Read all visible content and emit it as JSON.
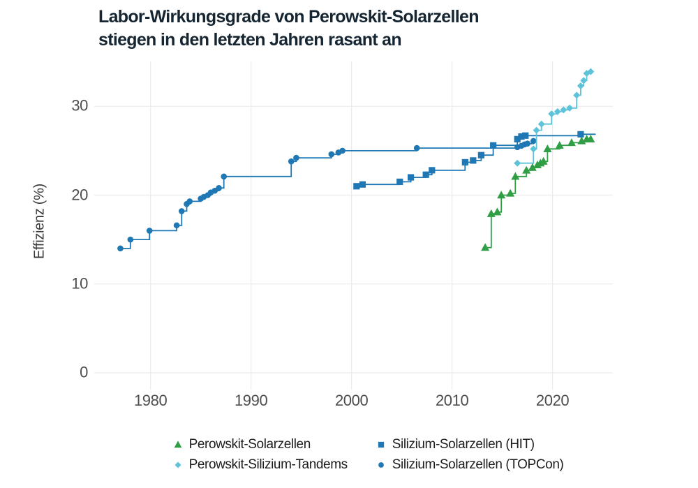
{
  "title": {
    "line1": "Labor-Wirkungsgrade von Perowskit-Solarzellen",
    "line2": "stiegen in den letzten Jahren rasant an"
  },
  "colors": {
    "green": "#2f9e44",
    "cyan": "#5ec3d8",
    "blue": "#1f77b4",
    "grid": "#ebebeb",
    "tick_text": "#4d4d4d",
    "title_text": "#152531"
  },
  "y_axis": {
    "label": "Effizienz (%)",
    "ticks": [
      {
        "label": "30",
        "value": 30
      },
      {
        "label": "20",
        "value": 20
      },
      {
        "label": "10",
        "value": 10
      },
      {
        "label": "0",
        "value": 0
      }
    ]
  },
  "x_axis": {
    "ticks": [
      {
        "label": "1980",
        "value": 1980
      },
      {
        "label": "1990",
        "value": 1990
      },
      {
        "label": "2000",
        "value": 2000
      },
      {
        "label": "2010",
        "value": 2010
      },
      {
        "label": "2020",
        "value": 2020
      }
    ]
  },
  "chart_data": {
    "type": "line",
    "step": "after",
    "title": "Labor-Wirkungsgrade von Perowskit-Solarzellen stiegen in den letzten Jahren rasant an",
    "xlabel": "",
    "ylabel": "Effizienz (%)",
    "xlim": [
      1974.4,
      2026
    ],
    "ylim": [
      0,
      35
    ],
    "grid": true,
    "legend_position": "bottom",
    "series": [
      {
        "id": "perowskit",
        "name": "Perowskit-Solarzellen",
        "marker": "triangle",
        "color": "#2f9e44",
        "extend_to": null,
        "points": [
          [
            2013.3,
            14.1
          ],
          [
            2013.9,
            17.9
          ],
          [
            2014.5,
            18.1
          ],
          [
            2014.9,
            20.0
          ],
          [
            2015.8,
            20.2
          ],
          [
            2016.3,
            22.1
          ],
          [
            2017.4,
            22.8
          ],
          [
            2018.0,
            23.1
          ],
          [
            2018.5,
            23.4
          ],
          [
            2018.8,
            23.6
          ],
          [
            2019.1,
            23.8
          ],
          [
            2019.5,
            25.2
          ],
          [
            2020.7,
            25.6
          ],
          [
            2021.9,
            25.9
          ],
          [
            2022.9,
            26.1
          ],
          [
            2023.4,
            26.3
          ],
          [
            2023.8,
            26.3
          ]
        ]
      },
      {
        "id": "tandems",
        "name": "Perowskit-Silizium-Tandems",
        "marker": "diamond",
        "color": "#5ec3d8",
        "extend_to": null,
        "points": [
          [
            2016.5,
            23.6
          ],
          [
            2018.1,
            25.2
          ],
          [
            2018.4,
            27.3
          ],
          [
            2018.9,
            28.0
          ],
          [
            2019.9,
            29.15
          ],
          [
            2020.5,
            29.4
          ],
          [
            2021.1,
            29.6
          ],
          [
            2021.7,
            29.8
          ],
          [
            2022.4,
            31.25
          ],
          [
            2022.8,
            32.3
          ],
          [
            2023.1,
            32.9
          ],
          [
            2023.4,
            33.7
          ],
          [
            2023.8,
            33.9
          ]
        ]
      },
      {
        "id": "hit",
        "name": "Silizium-Solarzellen (HIT)",
        "marker": "square",
        "color": "#1f77b4",
        "extend_to": 2024.3,
        "points": [
          [
            2000.5,
            21.0
          ],
          [
            2001.1,
            21.2
          ],
          [
            2004.8,
            21.5
          ],
          [
            2005.9,
            22.0
          ],
          [
            2007.4,
            22.3
          ],
          [
            2008.0,
            22.8
          ],
          [
            2011.3,
            23.7
          ],
          [
            2012.1,
            23.9
          ],
          [
            2012.9,
            24.5
          ],
          [
            2014.1,
            25.6
          ],
          [
            2016.5,
            26.3
          ],
          [
            2016.9,
            26.6
          ],
          [
            2017.3,
            26.7
          ],
          [
            2022.8,
            26.85
          ]
        ]
      },
      {
        "id": "topcon",
        "name": "Silizium-Solarzellen (TOPCon)",
        "marker": "circle",
        "color": "#1f77b4",
        "extend_to": null,
        "points": [
          [
            1977.0,
            14.0
          ],
          [
            1978.0,
            15.0
          ],
          [
            1979.9,
            16.0
          ],
          [
            1982.6,
            16.6
          ],
          [
            1983.1,
            18.2
          ],
          [
            1983.6,
            19.0
          ],
          [
            1983.9,
            19.3
          ],
          [
            1985.0,
            19.6
          ],
          [
            1985.3,
            19.8
          ],
          [
            1985.7,
            20.0
          ],
          [
            1986.0,
            20.3
          ],
          [
            1986.4,
            20.5
          ],
          [
            1986.8,
            20.8
          ],
          [
            1987.3,
            22.1
          ],
          [
            1994.0,
            23.8
          ],
          [
            1994.5,
            24.2
          ],
          [
            1998.0,
            24.6
          ],
          [
            1998.7,
            24.8
          ],
          [
            1999.1,
            25.0
          ],
          [
            2006.5,
            25.3
          ],
          [
            2016.5,
            25.4
          ],
          [
            2016.9,
            25.55
          ],
          [
            2017.2,
            25.7
          ],
          [
            2017.5,
            25.8
          ],
          [
            2018.1,
            26.1
          ]
        ]
      }
    ]
  },
  "legend": {
    "display_order": [
      0,
      2,
      1,
      3
    ]
  }
}
